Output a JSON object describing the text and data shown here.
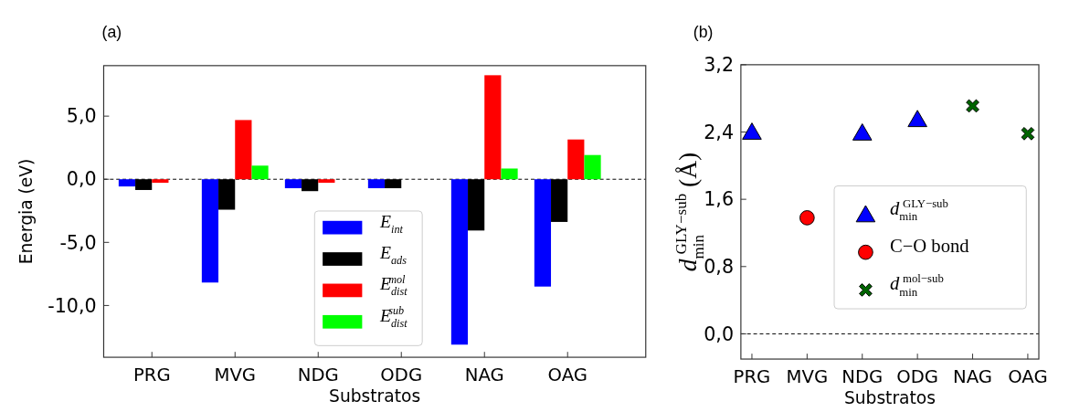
{
  "chart_data": [
    {
      "type": "bar",
      "title": "(a)",
      "xlabel": "Substratos",
      "ylabel": "Energia (eV)",
      "categories": [
        "PRG",
        "MVG",
        "NDG",
        "ODG",
        "NAG",
        "OAG"
      ],
      "series": [
        {
          "name": "E$_{int}$",
          "color": "#0000ff",
          "values": [
            -0.57,
            -8.18,
            -0.71,
            -0.71,
            -13.1,
            -8.5
          ]
        },
        {
          "name": "E$_{ads}$",
          "color": "#000000",
          "values": [
            -0.85,
            -2.41,
            -0.94,
            -0.71,
            -4.06,
            -3.38
          ]
        },
        {
          "name": "E$_{dist}$$^{mol}$",
          "color": "#ff0000",
          "values": [
            -0.28,
            4.69,
            -0.28,
            0,
            8.24,
            3.15
          ]
        },
        {
          "name": "E$_{dist}$$^{sub}$",
          "color": "#00ff00",
          "values": [
            null,
            1.08,
            null,
            null,
            0.85,
            1.92
          ]
        }
      ],
      "ylim": [
        -14.1,
        9
      ],
      "yticks": [
        {
          "value": -10,
          "label": "-10,0"
        },
        {
          "value": -5,
          "label": "-5,0"
        },
        {
          "value": 0,
          "label": "0,0"
        },
        {
          "value": 5,
          "label": "5,0"
        }
      ],
      "ref_lines": [
        {
          "axis": "y",
          "value": 0,
          "color": "#000000",
          "line_style": "dashed"
        }
      ],
      "legend": "bottom",
      "grid": false
    },
    {
      "type": "scatter",
      "title": "(b)",
      "xlabel": "Substratos",
      "ylabel": "d$_{min}$$^{GLY−sub}$ (Å)",
      "categories": [
        "PRG",
        "MVG",
        "NDG",
        "ODG",
        "NAG",
        "OAG"
      ],
      "series": [
        {
          "name": "d$_{min}$$^{GLY−sub}$",
          "color": "#0000ff",
          "marker": "triangle",
          "values": [
            2.4,
            null,
            2.39,
            2.55,
            null,
            null
          ]
        },
        {
          "name": "C−O bond",
          "color": "#ff0000",
          "marker": "circle",
          "values": [
            null,
            1.38,
            null,
            null,
            null,
            null
          ]
        },
        {
          "name": "d$_{min}$$^{mol−sub}$",
          "color": "#006400",
          "marker": "cross",
          "values": [
            null,
            null,
            null,
            null,
            2.71,
            2.38
          ]
        }
      ],
      "ylim": [
        -0.3,
        3.2
      ],
      "yticks": [
        {
          "value": 0,
          "label": "0,0"
        },
        {
          "value": 0.8,
          "label": "0,8"
        },
        {
          "value": 1.6,
          "label": "1,6"
        },
        {
          "value": 2.4,
          "label": "2,4"
        },
        {
          "value": 3.2,
          "label": "3,2"
        }
      ],
      "ref_lines": [
        {
          "axis": "y",
          "value": 0,
          "color": "#000000",
          "line_style": "dashed"
        }
      ],
      "legend": "center right",
      "grid": false
    }
  ]
}
